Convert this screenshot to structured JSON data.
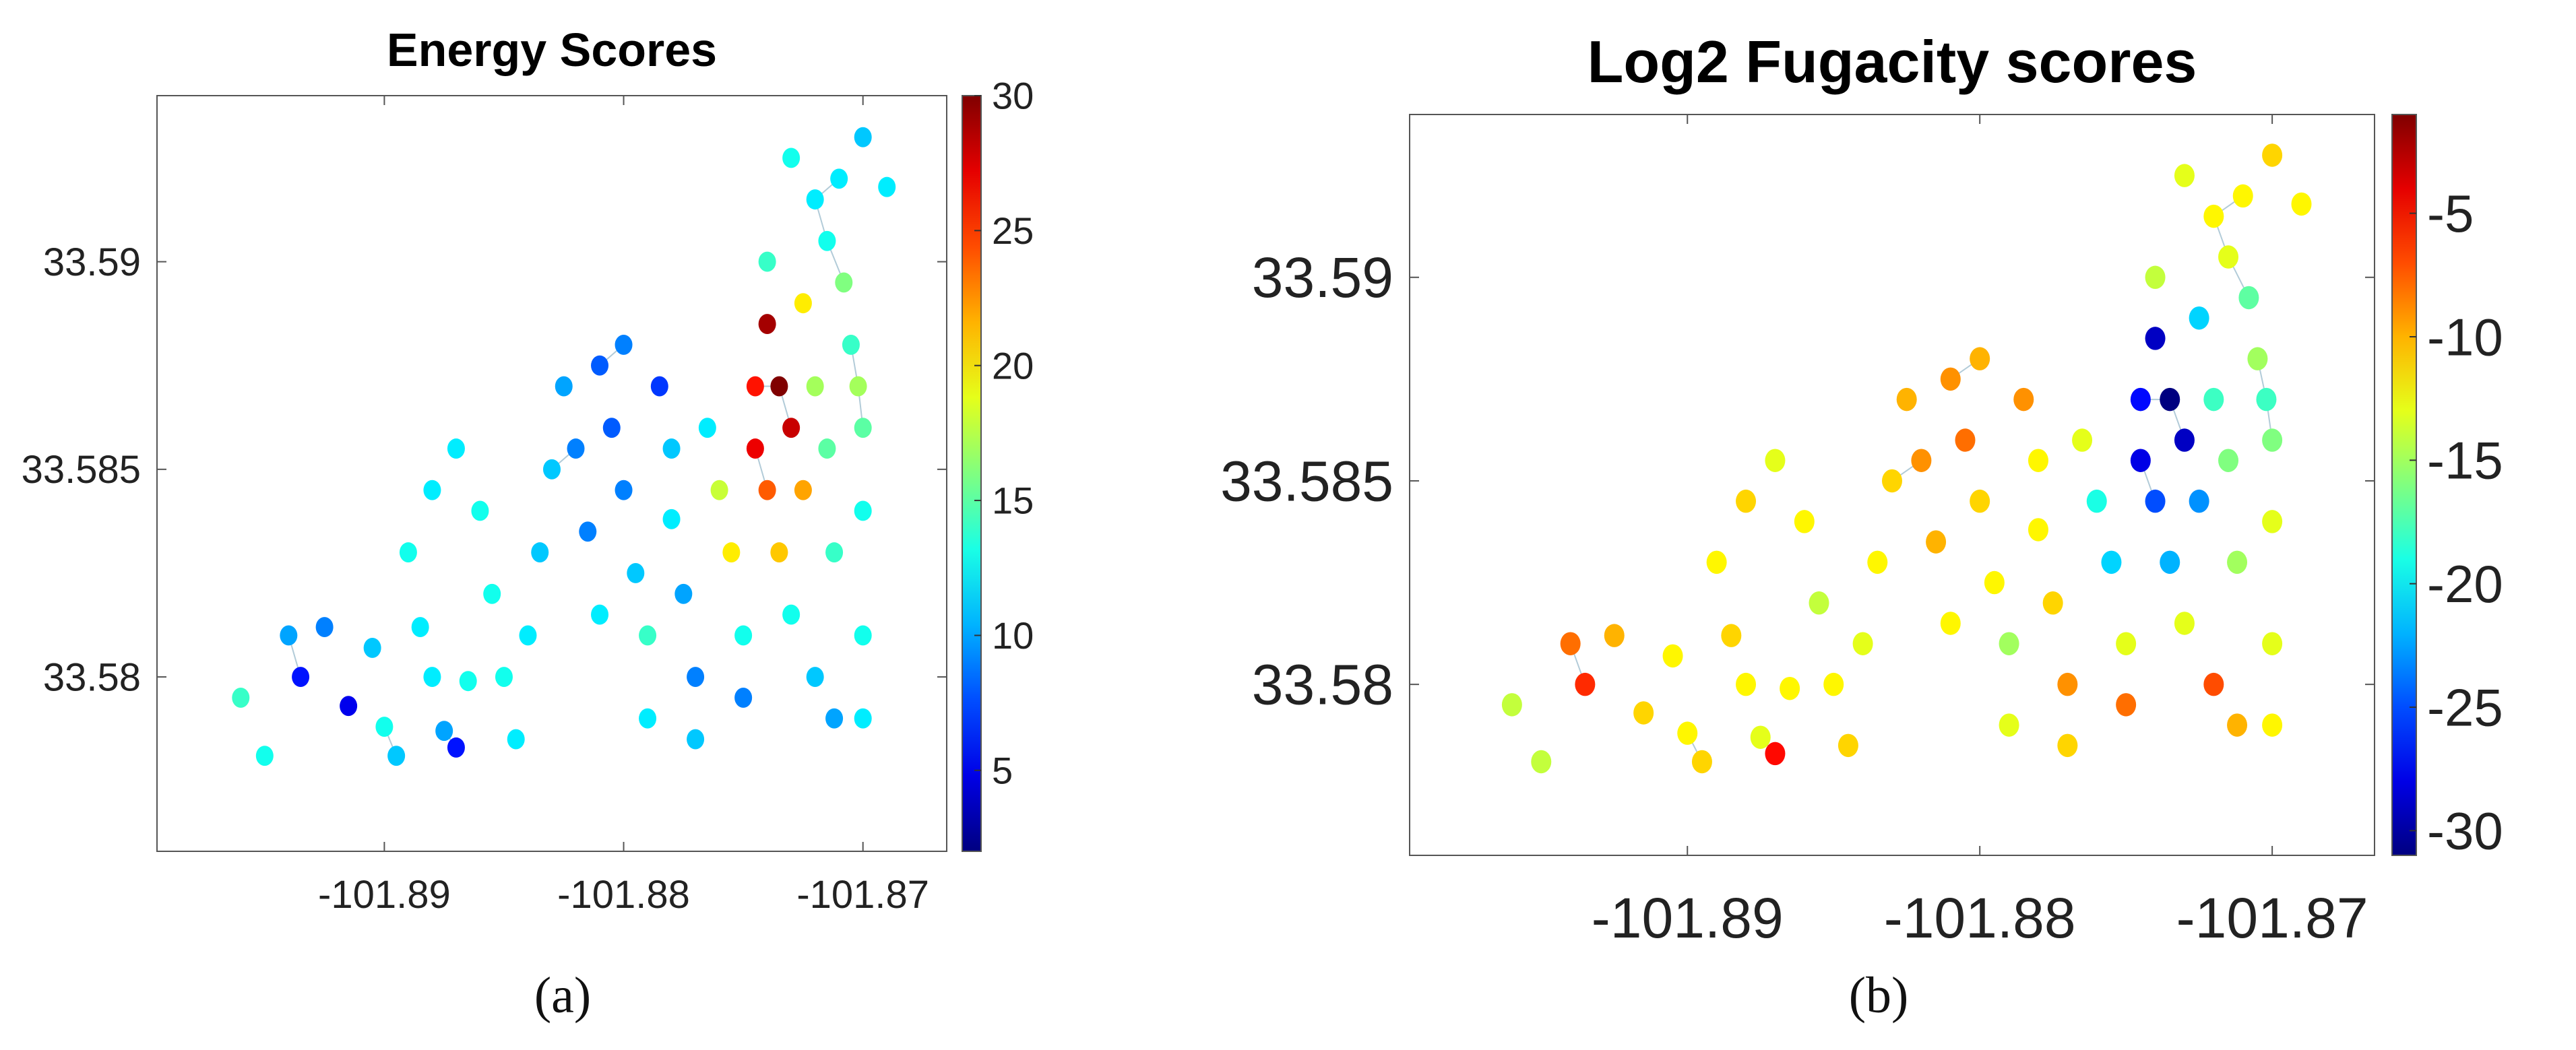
{
  "figure": {
    "caption_a": "(a)",
    "caption_b": "(b)"
  },
  "chart_data": [
    {
      "type": "scatter",
      "title": "Energy Scores",
      "xlabel": "",
      "ylabel": "",
      "xticks": [
        "-101.89",
        "-101.88",
        "-101.87"
      ],
      "yticks": [
        "33.59",
        "33.585",
        "33.58"
      ],
      "xlim": [
        -101.8995,
        -101.8665
      ],
      "ylim": [
        33.5758,
        33.594
      ],
      "grid": false,
      "colorbar": {
        "label": "",
        "ticks": [
          "30",
          "25",
          "20",
          "15",
          "10",
          "5"
        ],
        "range": [
          2,
          30
        ],
        "colormap": "jet"
      },
      "series": [
        {
          "description_of_values": "x = longitude, y = latitude, c = energy score",
          "points": [
            [
              -101.896,
              33.5795,
              14
            ],
            [
              -101.895,
              33.5781,
              13
            ],
            [
              -101.894,
              33.581,
              10
            ],
            [
              -101.8925,
              33.5812,
              9
            ],
            [
              -101.8935,
              33.58,
              6
            ],
            [
              -101.8915,
              33.5793,
              5
            ],
            [
              -101.8905,
              33.5807,
              11
            ],
            [
              -101.89,
              33.5788,
              13
            ],
            [
              -101.8895,
              33.5781,
              11
            ],
            [
              -101.8885,
              33.5812,
              12
            ],
            [
              -101.888,
              33.58,
              12
            ],
            [
              -101.8875,
              33.5787,
              10
            ],
            [
              -101.887,
              33.5783,
              6
            ],
            [
              -101.8865,
              33.5799,
              13
            ],
            [
              -101.889,
              33.583,
              13
            ],
            [
              -101.888,
              33.5845,
              12
            ],
            [
              -101.887,
              33.5855,
              12
            ],
            [
              -101.886,
              33.584,
              13
            ],
            [
              -101.8855,
              33.582,
              13
            ],
            [
              -101.885,
              33.58,
              13
            ],
            [
              -101.8845,
              33.5785,
              12
            ],
            [
              -101.884,
              33.581,
              12
            ],
            [
              -101.8835,
              33.583,
              11
            ],
            [
              -101.883,
              33.585,
              11
            ],
            [
              -101.8825,
              33.587,
              10
            ],
            [
              -101.882,
              33.5855,
              9
            ],
            [
              -101.8815,
              33.5835,
              9
            ],
            [
              -101.881,
              33.5815,
              12
            ],
            [
              -101.881,
              33.5875,
              8
            ],
            [
              -101.88,
              33.588,
              9
            ],
            [
              -101.8805,
              33.586,
              8
            ],
            [
              -101.88,
              33.5845,
              9
            ],
            [
              -101.8795,
              33.5825,
              11
            ],
            [
              -101.879,
              33.581,
              14
            ],
            [
              -101.879,
              33.579,
              12
            ],
            [
              -101.8785,
              33.587,
              7
            ],
            [
              -101.878,
              33.5855,
              11
            ],
            [
              -101.878,
              33.5838,
              12
            ],
            [
              -101.8775,
              33.582,
              10
            ],
            [
              -101.877,
              33.58,
              9
            ],
            [
              -101.877,
              33.5785,
              11
            ],
            [
              -101.8765,
              33.586,
              12
            ],
            [
              -101.876,
              33.5845,
              18
            ],
            [
              -101.8755,
              33.583,
              20
            ],
            [
              -101.875,
              33.581,
              13
            ],
            [
              -101.875,
              33.5795,
              9
            ],
            [
              -101.8745,
              33.587,
              26
            ],
            [
              -101.8745,
              33.5855,
              27
            ],
            [
              -101.874,
              33.5885,
              29
            ],
            [
              -101.874,
              33.5845,
              24
            ],
            [
              -101.8735,
              33.587,
              30
            ],
            [
              -101.8735,
              33.583,
              21
            ],
            [
              -101.873,
              33.586,
              28
            ],
            [
              -101.873,
              33.5815,
              13
            ],
            [
              -101.8725,
              33.589,
              20
            ],
            [
              -101.8725,
              33.5845,
              22
            ],
            [
              -101.872,
              33.587,
              17
            ],
            [
              -101.872,
              33.58,
              11
            ],
            [
              -101.8715,
              33.5905,
              13
            ],
            [
              -101.8715,
              33.5855,
              15
            ],
            [
              -101.8712,
              33.583,
              14
            ],
            [
              -101.8712,
              33.579,
              10
            ],
            [
              -101.872,
              33.5915,
              12
            ],
            [
              -101.873,
              33.5925,
              13
            ],
            [
              -101.874,
              33.59,
              14
            ],
            [
              -101.871,
              33.592,
              12
            ],
            [
              -101.8705,
              33.588,
              14
            ],
            [
              -101.87,
              33.586,
              15
            ],
            [
              -101.87,
              33.584,
              13
            ],
            [
              -101.87,
              33.581,
              13
            ],
            [
              -101.87,
              33.579,
              12
            ],
            [
              -101.87,
              33.593,
              11
            ],
            [
              -101.869,
              33.5918,
              12
            ],
            [
              -101.8708,
              33.5895,
              16
            ],
            [
              -101.8702,
              33.587,
              17
            ]
          ]
        }
      ]
    },
    {
      "type": "scatter",
      "title": "Log2 Fugacity scores",
      "xlabel": "",
      "ylabel": "",
      "xticks": [
        "-101.89",
        "-101.88",
        "-101.87"
      ],
      "yticks": [
        "33.59",
        "33.585",
        "33.58"
      ],
      "xlim": [
        -101.8995,
        -101.8665
      ],
      "ylim": [
        33.5758,
        33.594
      ],
      "grid": false,
      "colorbar": {
        "label": "",
        "ticks": [
          "-5",
          "-10",
          "-15",
          "-20",
          "-25",
          "-30"
        ],
        "range": [
          -31,
          -1
        ],
        "colormap": "jet"
      },
      "series": [
        {
          "description_of_values": "x = longitude, y = latitude, c = log2 fugacity score",
          "points": [
            [
              -101.896,
              33.5795,
              -14
            ],
            [
              -101.895,
              33.5781,
              -14
            ],
            [
              -101.894,
              33.581,
              -8
            ],
            [
              -101.8925,
              33.5812,
              -10
            ],
            [
              -101.8935,
              33.58,
              -6
            ],
            [
              -101.8915,
              33.5793,
              -11
            ],
            [
              -101.8905,
              33.5807,
              -12
            ],
            [
              -101.89,
              33.5788,
              -12
            ],
            [
              -101.8895,
              33.5781,
              -11
            ],
            [
              -101.8885,
              33.5812,
              -11
            ],
            [
              -101.888,
              33.58,
              -12
            ],
            [
              -101.8875,
              33.5787,
              -13
            ],
            [
              -101.887,
              33.5783,
              -5
            ],
            [
              -101.8865,
              33.5799,
              -12
            ],
            [
              -101.889,
              33.583,
              -12
            ],
            [
              -101.888,
              33.5845,
              -11
            ],
            [
              -101.887,
              33.5855,
              -13
            ],
            [
              -101.886,
              33.584,
              -12
            ],
            [
              -101.8855,
              33.582,
              -14
            ],
            [
              -101.885,
              33.58,
              -12
            ],
            [
              -101.8845,
              33.5785,
              -11
            ],
            [
              -101.884,
              33.581,
              -13
            ],
            [
              -101.8835,
              33.583,
              -12
            ],
            [
              -101.883,
              33.585,
              -11
            ],
            [
              -101.8825,
              33.587,
              -10
            ],
            [
              -101.882,
              33.5855,
              -9
            ],
            [
              -101.8815,
              33.5835,
              -10
            ],
            [
              -101.881,
              33.5815,
              -12
            ],
            [
              -101.881,
              33.5875,
              -9
            ],
            [
              -101.88,
              33.588,
              -10
            ],
            [
              -101.8805,
              33.586,
              -8
            ],
            [
              -101.88,
              33.5845,
              -11
            ],
            [
              -101.8795,
              33.5825,
              -12
            ],
            [
              -101.879,
              33.581,
              -15
            ],
            [
              -101.879,
              33.579,
              -13
            ],
            [
              -101.8785,
              33.587,
              -9
            ],
            [
              -101.878,
              33.5855,
              -12
            ],
            [
              -101.878,
              33.5838,
              -12
            ],
            [
              -101.8775,
              33.582,
              -11
            ],
            [
              -101.877,
              33.58,
              -9
            ],
            [
              -101.877,
              33.5785,
              -11
            ],
            [
              -101.8765,
              33.586,
              -13
            ],
            [
              -101.876,
              33.5845,
              -19
            ],
            [
              -101.8755,
              33.583,
              -21
            ],
            [
              -101.875,
              33.581,
              -13
            ],
            [
              -101.875,
              33.5795,
              -8
            ],
            [
              -101.8745,
              33.587,
              -27
            ],
            [
              -101.8745,
              33.5855,
              -28
            ],
            [
              -101.874,
              33.5885,
              -29
            ],
            [
              -101.874,
              33.5845,
              -25
            ],
            [
              -101.8735,
              33.587,
              -31
            ],
            [
              -101.8735,
              33.583,
              -22
            ],
            [
              -101.873,
              33.586,
              -29
            ],
            [
              -101.873,
              33.5815,
              -13
            ],
            [
              -101.8725,
              33.589,
              -21
            ],
            [
              -101.8725,
              33.5845,
              -23
            ],
            [
              -101.872,
              33.587,
              -18
            ],
            [
              -101.872,
              33.58,
              -7
            ],
            [
              -101.8715,
              33.5905,
              -13
            ],
            [
              -101.8715,
              33.5855,
              -16
            ],
            [
              -101.8712,
              33.583,
              -15
            ],
            [
              -101.8712,
              33.579,
              -10
            ],
            [
              -101.872,
              33.5915,
              -12
            ],
            [
              -101.873,
              33.5925,
              -13
            ],
            [
              -101.874,
              33.59,
              -14
            ],
            [
              -101.871,
              33.592,
              -12
            ],
            [
              -101.8705,
              33.588,
              -15
            ],
            [
              -101.87,
              33.586,
              -16
            ],
            [
              -101.87,
              33.584,
              -13
            ],
            [
              -101.87,
              33.581,
              -13
            ],
            [
              -101.87,
              33.579,
              -12
            ],
            [
              -101.87,
              33.593,
              -11
            ],
            [
              -101.869,
              33.5918,
              -12
            ],
            [
              -101.8708,
              33.5895,
              -17
            ],
            [
              -101.8702,
              33.587,
              -18
            ]
          ]
        }
      ]
    }
  ]
}
